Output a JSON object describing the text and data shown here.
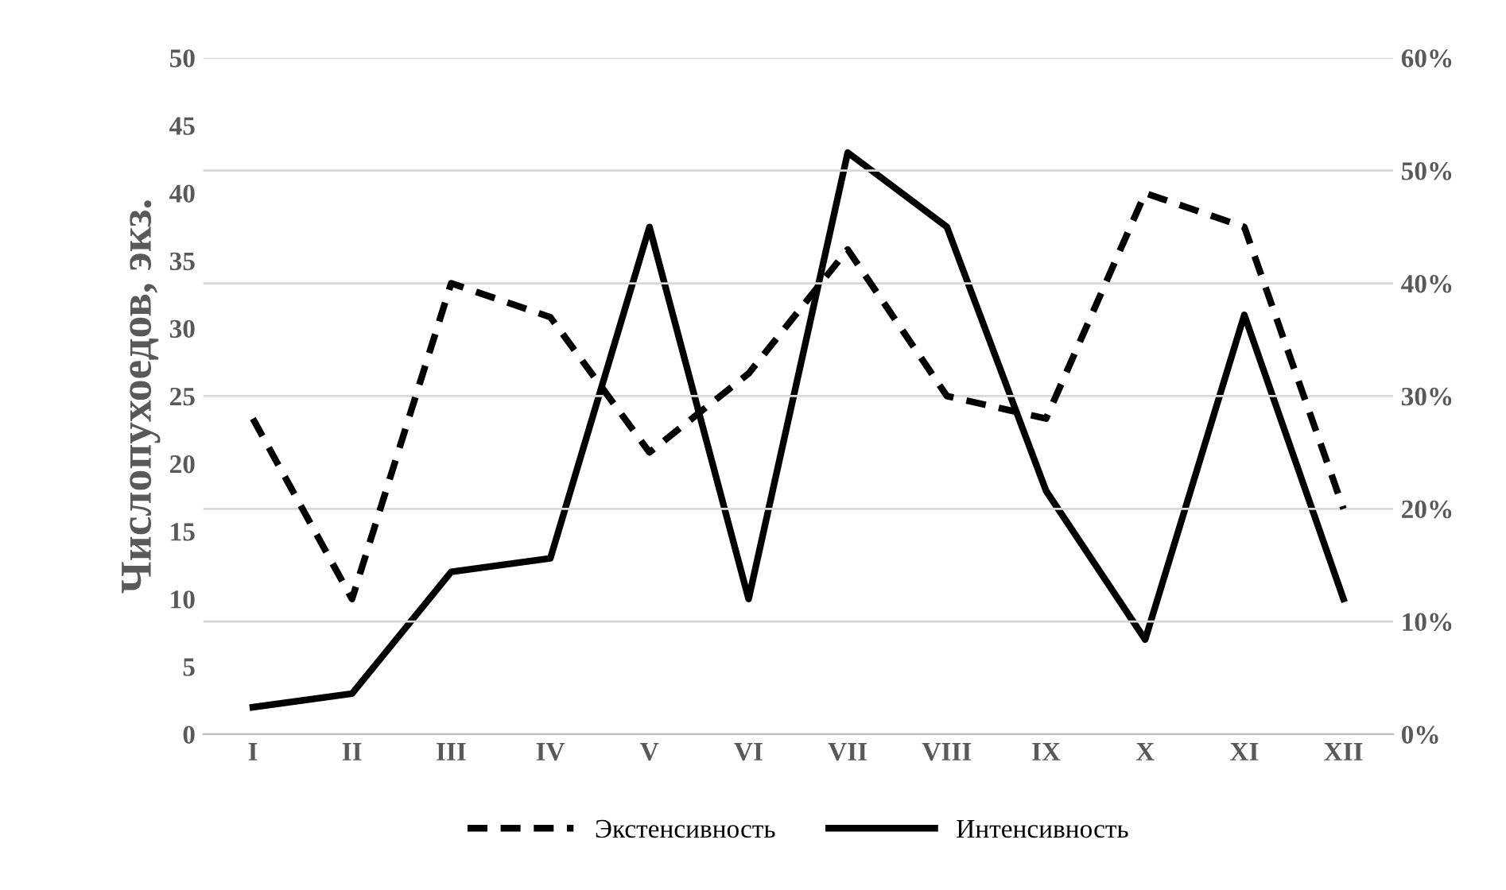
{
  "chart_data": {
    "type": "line",
    "ylabel": "Числопухоедов, экз.",
    "categories": [
      "I",
      "II",
      "III",
      "IV",
      "V",
      "VI",
      "VII",
      "VIII",
      "IX",
      "X",
      "XI",
      "XII"
    ],
    "series": [
      {
        "name": "Экстенсивность",
        "color": "#000000",
        "line_style": "dashed",
        "axis": "y2",
        "values": [
          28,
          12,
          40,
          37,
          25,
          32,
          43,
          30,
          28,
          48,
          45,
          20
        ]
      },
      {
        "name": "Интенсивность",
        "color": "#000000",
        "line_style": "solid",
        "values": [
          2,
          3,
          12,
          13,
          37.5,
          10,
          43,
          37.5,
          18,
          7,
          31,
          10
        ]
      }
    ],
    "ylim": [
      0,
      50
    ],
    "yticks": [
      0,
      5,
      10,
      15,
      20,
      25,
      30,
      35,
      40,
      45,
      50
    ],
    "y2lim": [
      0,
      60
    ],
    "y2ticks": [
      {
        "value": 0,
        "label": "0%"
      },
      {
        "value": 10,
        "label": "10%"
      },
      {
        "value": 20,
        "label": "20%"
      },
      {
        "value": 30,
        "label": "30%"
      },
      {
        "value": 40,
        "label": "40%"
      },
      {
        "value": 50,
        "label": "50%"
      },
      {
        "value": 60,
        "label": "60%"
      }
    ],
    "grid": "y",
    "legend": "bottom",
    "marker": "none"
  }
}
